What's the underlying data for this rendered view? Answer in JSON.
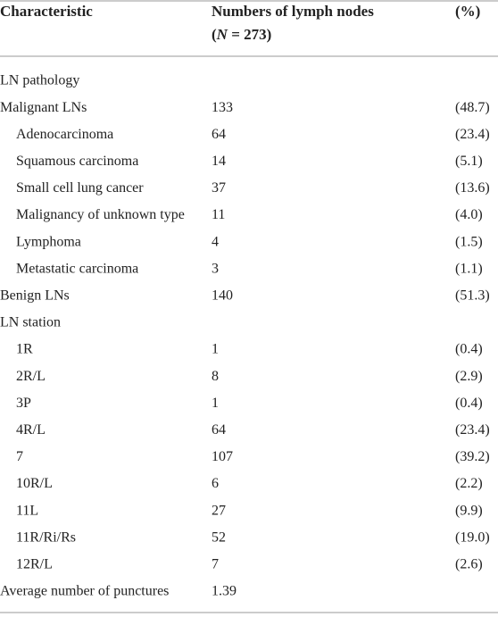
{
  "table": {
    "header": {
      "col1": "Characteristic",
      "col2_line1": "Numbers of lymph nodes",
      "col2_line2": [
        "(",
        "N",
        " = 273)"
      ],
      "col3": "(%)"
    },
    "rows": [
      {
        "cells": [
          "LN pathology"
        ]
      },
      {
        "cells": [
          "Malignant LNs",
          133,
          "(48.7)"
        ],
        "sub": [
          [
            "Adenocarcinoma",
            64,
            "(23.4)"
          ],
          [
            "Squamous carcinoma",
            14,
            "(5.1)"
          ],
          [
            "Small cell lung cancer",
            37,
            "(13.6)"
          ],
          [
            "Malignancy of unknown type",
            11,
            "(4.0)"
          ],
          [
            "Lymphoma",
            4,
            "(1.5)"
          ],
          [
            "Metastatic carcinoma",
            3,
            "(1.1)"
          ]
        ]
      },
      {
        "cells": [
          "Benign LNs",
          140,
          "(51.3)"
        ]
      },
      {
        "cells": [
          "LN station"
        ],
        "sub": [
          [
            "1R",
            1,
            "(0.4)"
          ],
          [
            "2R/L",
            8,
            "(2.9)"
          ],
          [
            "3P",
            1,
            "(0.4)"
          ],
          [
            "4R/L",
            64,
            "(23.4)"
          ],
          [
            "7",
            107,
            "(39.2)"
          ],
          [
            "10R/L",
            6,
            "(2.2)"
          ],
          [
            "11L",
            27,
            "(9.9)"
          ],
          [
            "11R/Ri/Rs",
            52,
            "(19.0)"
          ],
          [
            "12R/L",
            7,
            "(2.6)"
          ]
        ]
      },
      {
        "cells": [
          "Average number of punctures",
          1.39
        ]
      }
    ]
  }
}
